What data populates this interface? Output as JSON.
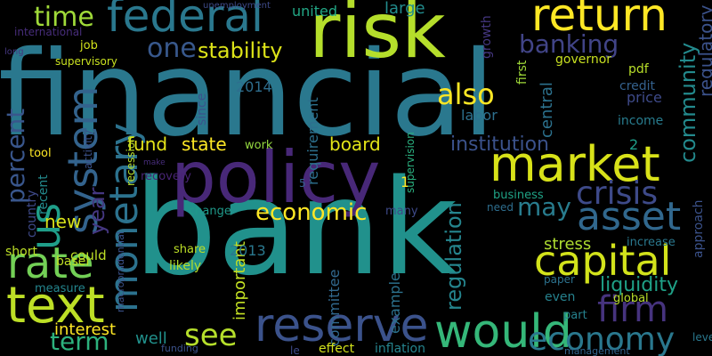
{
  "words": [
    {
      "text": "financial",
      "color": "#2a788e"
    },
    {
      "text": "bank",
      "color": "#21918c"
    },
    {
      "text": "policy",
      "color": "#482878"
    },
    {
      "text": "risk",
      "color": "#b5de2b"
    },
    {
      "text": "market",
      "color": "#d8e219"
    },
    {
      "text": "return",
      "color": "#fde725"
    },
    {
      "text": "federal",
      "color": "#2a788e"
    },
    {
      "text": "capital",
      "color": "#d2e21b"
    },
    {
      "text": "reserve",
      "color": "#3b528b"
    },
    {
      "text": "text",
      "color": "#bddf26"
    },
    {
      "text": "rate",
      "color": "#73d056"
    },
    {
      "text": "would",
      "color": "#35b779"
    },
    {
      "text": "monetary",
      "color": "#2c728e"
    },
    {
      "text": "system",
      "color": "#33638d"
    },
    {
      "text": "us",
      "color": "#1f9e89"
    },
    {
      "text": "asset",
      "color": "#31688e"
    },
    {
      "text": "crisis",
      "color": "#3e4a89"
    },
    {
      "text": "firm",
      "color": "#46337e"
    },
    {
      "text": "economy",
      "color": "#2a788e"
    },
    {
      "text": "also",
      "color": "#fde725"
    },
    {
      "text": "banking",
      "color": "#414487"
    },
    {
      "text": "time",
      "color": "#a0da39"
    },
    {
      "text": "see",
      "color": "#b5de2b"
    },
    {
      "text": "term",
      "color": "#2db27d"
    },
    {
      "text": "economic",
      "color": "#fde725"
    },
    {
      "text": "may",
      "color": "#287c8e"
    },
    {
      "text": "one",
      "color": "#38588c"
    },
    {
      "text": "stability",
      "color": "#dde318"
    },
    {
      "text": "percent",
      "color": "#39568c"
    },
    {
      "text": "year",
      "color": "#453781"
    },
    {
      "text": "interest",
      "color": "#fde725"
    },
    {
      "text": "fund",
      "color": "#e5e419"
    },
    {
      "text": "state",
      "color": "#fde725"
    },
    {
      "text": "board",
      "color": "#e2e418"
    },
    {
      "text": "institution",
      "color": "#3b528b"
    },
    {
      "text": "regulation",
      "color": "#25858e"
    },
    {
      "text": "community",
      "color": "#238a8d"
    },
    {
      "text": "liquidity",
      "color": "#1fa187"
    },
    {
      "text": "regulatory",
      "color": "#3b528b"
    },
    {
      "text": "united",
      "color": "#22a785"
    },
    {
      "text": "large",
      "color": "#228c8d"
    },
    {
      "text": "new",
      "color": "#d8e219"
    },
    {
      "text": "2014",
      "color": "#2e6e8e"
    },
    {
      "text": "labor",
      "color": "#2d708e"
    },
    {
      "text": "central",
      "color": "#2c728e"
    },
    {
      "text": "stress",
      "color": "#addc30"
    },
    {
      "text": "requirement",
      "color": "#2d708e"
    },
    {
      "text": "important",
      "color": "#c2df23"
    },
    {
      "text": "committee",
      "color": "#31688e"
    },
    {
      "text": "example",
      "color": "#2c728e"
    },
    {
      "text": "2013",
      "color": "#2a788e"
    },
    {
      "text": "well",
      "color": "#21918c"
    },
    {
      "text": "2",
      "color": "#1f9e89"
    },
    {
      "text": "1",
      "color": "#fde725"
    },
    {
      "text": "5",
      "color": "#33638d"
    },
    {
      "text": "growth",
      "color": "#453781"
    },
    {
      "text": "first",
      "color": "#a0da39"
    },
    {
      "text": "governor",
      "color": "#c8e020"
    },
    {
      "text": "pdf",
      "color": "#b8de29"
    },
    {
      "text": "credit",
      "color": "#34618d"
    },
    {
      "text": "price",
      "color": "#3e4a89"
    },
    {
      "text": "income",
      "color": "#287c8e"
    },
    {
      "text": "supervision",
      "color": "#2ab07f"
    },
    {
      "text": "since",
      "color": "#3a548c"
    },
    {
      "text": "work",
      "color": "#95d840"
    },
    {
      "text": "recovery",
      "color": "#482475"
    },
    {
      "text": "change",
      "color": "#1f9a8a"
    },
    {
      "text": "many",
      "color": "#3e4a89"
    },
    {
      "text": "business",
      "color": "#20a386"
    },
    {
      "text": "need",
      "color": "#2e6e8e"
    },
    {
      "text": "increase",
      "color": "#2a788e"
    },
    {
      "text": "approach",
      "color": "#3b528b"
    },
    {
      "text": "paper",
      "color": "#2c728e"
    },
    {
      "text": "even",
      "color": "#26828e"
    },
    {
      "text": "global",
      "color": "#b8de29"
    },
    {
      "text": "part",
      "color": "#26828e"
    },
    {
      "text": "level",
      "color": "#2a788e"
    },
    {
      "text": "management",
      "color": "#32648e"
    },
    {
      "text": "inflation",
      "color": "#25848e"
    },
    {
      "text": "effect",
      "color": "#d2e21b"
    },
    {
      "text": "le",
      "color": "#3e4a89"
    },
    {
      "text": "funding",
      "color": "#3b528b"
    },
    {
      "text": "share",
      "color": "#bddf26"
    },
    {
      "text": "likely",
      "color": "#b2dd2d"
    },
    {
      "text": "basel",
      "color": "#c0df25"
    },
    {
      "text": "short",
      "color": "#bddf26"
    },
    {
      "text": "could",
      "color": "#bddf26"
    },
    {
      "text": "measure",
      "color": "#24868e"
    },
    {
      "text": "macroprudential",
      "color": "#3b528b"
    },
    {
      "text": "country",
      "color": "#3e4989"
    },
    {
      "text": "recent",
      "color": "#238a8d"
    },
    {
      "text": "tool",
      "color": "#fde725"
    },
    {
      "text": "make",
      "color": "#472d7b"
    },
    {
      "text": "recession",
      "color": "#b8de29"
    },
    {
      "text": "activity",
      "color": "#3b528b"
    },
    {
      "text": "job",
      "color": "#d2e21b"
    },
    {
      "text": "supervisory",
      "color": "#c8e020"
    },
    {
      "text": "international",
      "color": "#472d7b"
    },
    {
      "text": "long",
      "color": "#453781"
    },
    {
      "text": "unemployment",
      "color": "#3e4a89"
    }
  ]
}
